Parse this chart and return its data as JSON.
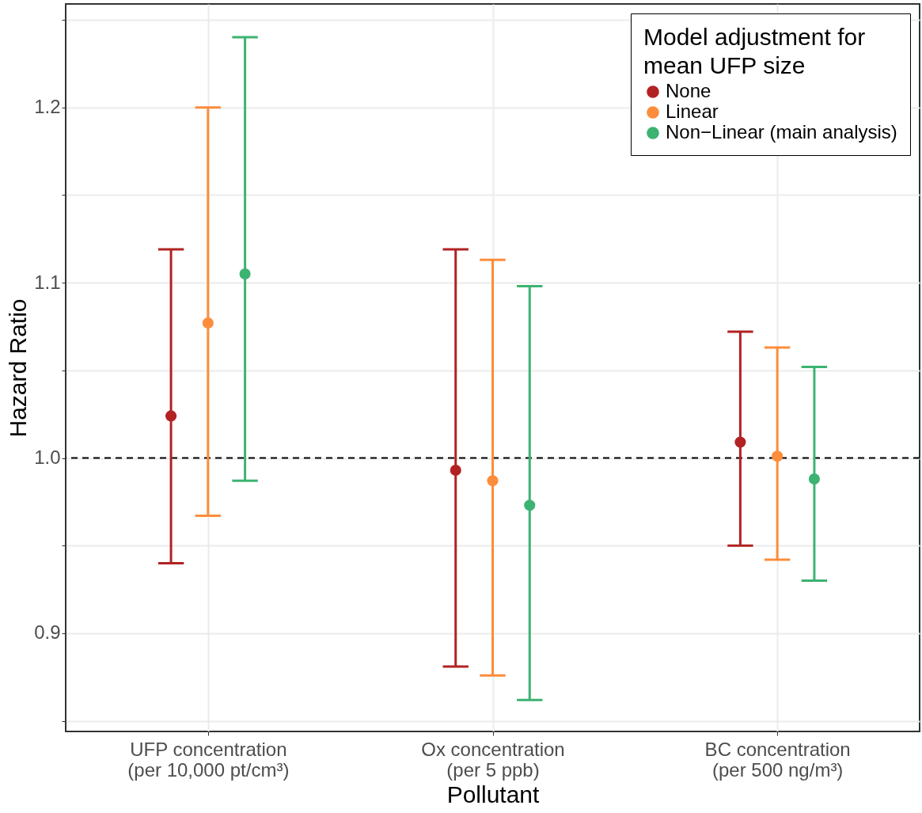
{
  "chart_data": {
    "type": "scatter",
    "xlabel": "Pollutant",
    "ylabel": "Hazard Ratio",
    "legend_title": "Model adjustment for\nmean UFP size",
    "categories": [
      "UFP concentration\n(per 10,000 pt/cm³)",
      "Ox concentration\n(per 5 ppb)",
      "BC concentration\n(per 500 ng/m³)"
    ],
    "series": [
      {
        "name": "None",
        "color": "#b22222",
        "values": [
          1.024,
          0.993,
          1.009
        ],
        "errors": [
          [
            0.94,
            1.119
          ],
          [
            0.881,
            1.119
          ],
          [
            0.95,
            1.072
          ]
        ]
      },
      {
        "name": "Linear",
        "color": "#fd8d3c",
        "values": [
          1.077,
          0.987,
          1.001
        ],
        "errors": [
          [
            0.967,
            1.2
          ],
          [
            0.876,
            1.113
          ],
          [
            0.942,
            1.063
          ]
        ]
      },
      {
        "name": "Non−Linear (main analysis)",
        "color": "#3cb371",
        "values": [
          1.105,
          0.973,
          0.988
        ],
        "errors": [
          [
            0.987,
            1.24
          ],
          [
            0.862,
            1.098
          ],
          [
            0.93,
            1.052
          ]
        ]
      }
    ],
    "ylim": [
      0.844,
      1.259
    ],
    "yticks": [
      {
        "value": 0.85,
        "label": null
      },
      0.9,
      {
        "value": 0.95,
        "label": null
      },
      {
        "value": 1.0,
        "label": "1.0"
      },
      {
        "value": 1.05,
        "label": null
      },
      1.1,
      {
        "value": 1.15,
        "label": null
      },
      1.2,
      {
        "value": 1.25,
        "label": null
      }
    ],
    "ref_lines": [
      {
        "axis": "y",
        "value": 1.0,
        "color": "#000000",
        "line_style": "dashed"
      }
    ],
    "marker": "circle",
    "grid": true,
    "legend": "top right"
  }
}
